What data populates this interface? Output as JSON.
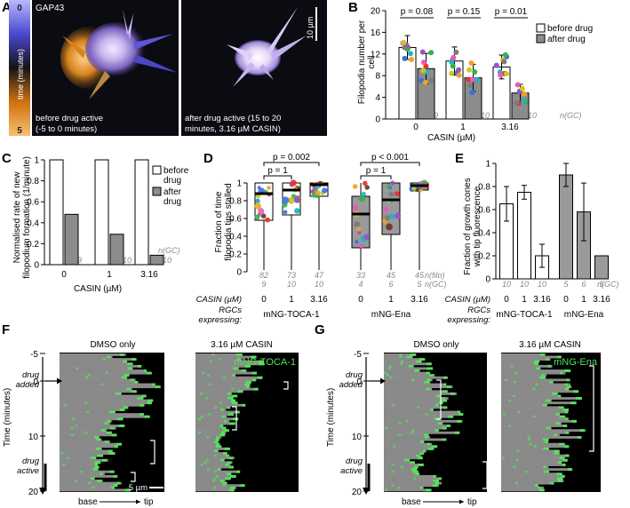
{
  "colors": {
    "before": "#ffffff",
    "after": "#8c8c8c",
    "green": "#55e35b",
    "kymo_bg": "#000000",
    "kymo_gray": "#8a8a8a",
    "cbar_top": "#b9b9ff",
    "cbar_mid": "#141414",
    "cbar_bot": "#f0a020"
  },
  "panel_labels": {
    "a": "A",
    "b": "B",
    "c": "C",
    "d": "D",
    "e": "E",
    "f": "F",
    "g": "G"
  },
  "panel_a": {
    "marker": "GAP43",
    "cbar_top": "0",
    "cbar_bottom": "5",
    "cbar_label": "time (minutes)",
    "scale_bar": "10 µm",
    "caption_left_1": "before drug active",
    "caption_left_2": "(-5 to 0 minutes)",
    "caption_right_1": "after drug active (15 to 20",
    "caption_right_2": "minutes, 3.16 µM CASIN)"
  },
  "chart_data": [
    {
      "panel": "B",
      "type": "bar",
      "categories": [
        "0",
        "1",
        "3.16"
      ],
      "series": [
        {
          "name": "before drug",
          "values": [
            13.2,
            10.7,
            9.6
          ],
          "err": [
            2.2,
            2.6,
            2.2
          ]
        },
        {
          "name": "after drug",
          "values": [
            9.3,
            7.6,
            4.8
          ],
          "err": [
            2.8,
            2.5,
            1.6
          ]
        }
      ],
      "ylabel_1": "Filopodia number per",
      "ylabel_2": "cell",
      "xlabel": "CASIN (µM)",
      "ylim": [
        0,
        20
      ],
      "yticks": [
        "0",
        "4",
        "8",
        "12",
        "16",
        "20"
      ],
      "pvalues": [
        "p = 0.08",
        "p = 0.15",
        "p = 0.01"
      ],
      "n": [
        "9",
        "10",
        "10"
      ],
      "n_label": "n(GC)",
      "legend": [
        "before drug",
        "after drug"
      ]
    },
    {
      "panel": "C",
      "type": "bar",
      "categories": [
        "0",
        "1",
        "3.16"
      ],
      "series": [
        {
          "name": "before drug",
          "values": [
            1,
            1,
            1
          ]
        },
        {
          "name": "after drug",
          "values": [
            0.48,
            0.29,
            0.09
          ]
        }
      ],
      "ylabel_1": "Normalised rate of new",
      "ylabel_2": "filopodium formation (1/minute)",
      "xlabel": "CASIN (µM)",
      "ylim": [
        0,
        1
      ],
      "yticks": [
        "0",
        "0.2",
        "0.4",
        "0.6",
        "0.8",
        "1"
      ],
      "n": [
        "9",
        "10",
        "10"
      ],
      "n_label": "n(GC)",
      "legend": [
        "before",
        "drug",
        "after",
        "drug"
      ]
    },
    {
      "panel": "D",
      "type": "box",
      "categories": [
        "0",
        "1",
        "3.16",
        "0",
        "1",
        "3.16"
      ],
      "groups": [
        "mNG-TOCA-1",
        "mNG-Ena"
      ],
      "median": [
        0.88,
        0.92,
        0.98,
        0.65,
        0.81,
        0.97
      ],
      "q1": [
        0.58,
        0.64,
        0.85,
        0.27,
        0.42,
        0.92
      ],
      "q3": [
        1.0,
        1.0,
        1.0,
        0.85,
        1.0,
        1.0
      ],
      "ylabel_1": "Fraction of time",
      "ylabel_2": "filopodia tips stalled",
      "ylim": [
        0,
        1
      ],
      "yticks": [
        "0",
        "0.2",
        "0.4",
        "0.6",
        "0.8",
        "1"
      ],
      "p_top": [
        "p = 0.002",
        "p < 0.001"
      ],
      "p_inner": [
        "p = 1",
        "p = 1"
      ],
      "n_filo": [
        "82",
        "73",
        "47",
        "33",
        "45",
        "45"
      ],
      "n_filo_label": "n(filo)",
      "n_gc": [
        "9",
        "10",
        "10",
        "4",
        "6",
        "5"
      ],
      "n_gc_label": "n(GC)",
      "casin_label": "CASIN (µM)",
      "rgcs_1": "RGCs",
      "rgcs_2": "expressing:"
    },
    {
      "panel": "E",
      "type": "bar",
      "categories": [
        "0",
        "1",
        "3.16",
        "0",
        "1",
        "3.16"
      ],
      "groups": [
        "mNG-TOCA-1",
        "mNG-Ena"
      ],
      "values": [
        0.65,
        0.75,
        0.2,
        0.9,
        0.58,
        0.2
      ],
      "err": [
        0.15,
        0.06,
        0.1,
        0.1,
        0.25,
        0.0
      ],
      "ylabel_1": "Fraction of growth cones",
      "ylabel_2": "with tip fluorescence",
      "ylim": [
        0,
        1
      ],
      "yticks": [
        "0",
        "0.2",
        "0.4",
        "0.6",
        "0.8",
        "1"
      ],
      "n": [
        "10",
        "10",
        "10",
        "5",
        "6",
        "5"
      ],
      "n_label": "n(GC)",
      "casin_label": "CASIN (µM)",
      "rgcs_1": "RGCs",
      "rgcs_2": "expressing:"
    }
  ],
  "panel_f": {
    "title_left": "DMSO only",
    "title_right": "3.16 µM CASIN",
    "marker": "mNG-TOCA-1",
    "ylabel": "Time (minutes)",
    "yticks": [
      "-5",
      "0",
      "10",
      "20"
    ],
    "drug_added_1": "drug",
    "drug_added_2": "added",
    "drug_active_1": "drug",
    "drug_active_2": "active",
    "scale_bar": "5 µm",
    "xlabel_base": "base",
    "xlabel_tip": "tip"
  },
  "panel_g": {
    "title_left": "DMSO only",
    "title_right": "3.16 µM CASIN",
    "marker": "mNG-Ena",
    "ylabel": "Time (minutes)",
    "yticks": [
      "-5",
      "0",
      "10",
      "20"
    ],
    "drug_added_1": "drug",
    "drug_added_2": "added",
    "drug_active_1": "drug",
    "drug_active_2": "active",
    "xlabel_base": "base",
    "xlabel_tip": "tip"
  }
}
